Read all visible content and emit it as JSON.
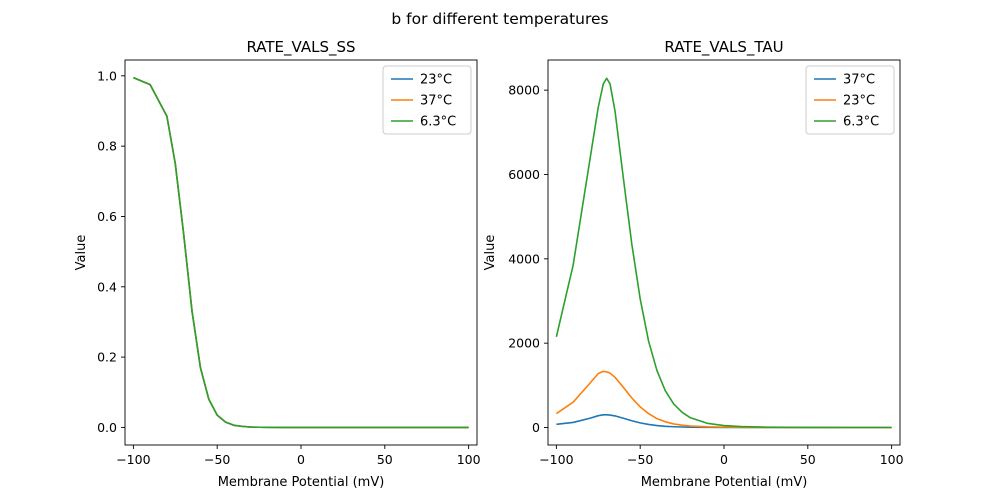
{
  "figure": {
    "suptitle": "b for different temperatures"
  },
  "chart_data": [
    {
      "type": "line",
      "title": "RATE_VALS_SS",
      "xlabel": "Membrane Potential (mV)",
      "ylabel": "Value",
      "xlim": [
        -105,
        105
      ],
      "ylim": [
        -0.05,
        1.045
      ],
      "xticks": [
        -100,
        -50,
        0,
        50,
        100
      ],
      "yticks": [
        0.0,
        0.2,
        0.4,
        0.6,
        0.8,
        1.0
      ],
      "ytick_labels": [
        "0.0",
        "0.2",
        "0.4",
        "0.6",
        "0.8",
        "1.0"
      ],
      "grid": false,
      "legend": "top-right",
      "x": [
        -100,
        -90,
        -80,
        -75,
        -70,
        -65,
        -60,
        -55,
        -50,
        -45,
        -40,
        -35,
        -30,
        -25,
        -20,
        -10,
        0,
        25,
        50,
        75,
        100
      ],
      "series": [
        {
          "name": "23°C",
          "color": "#1f77b4",
          "values": [
            0.995,
            0.975,
            0.885,
            0.75,
            0.55,
            0.33,
            0.17,
            0.08,
            0.035,
            0.015,
            0.006,
            0.003,
            0.001,
            0.0005,
            0.0002,
            0,
            0,
            0,
            0,
            0,
            0
          ]
        },
        {
          "name": "37°C",
          "color": "#ff7f0e",
          "values": [
            0.995,
            0.975,
            0.885,
            0.75,
            0.55,
            0.33,
            0.17,
            0.08,
            0.035,
            0.015,
            0.006,
            0.003,
            0.001,
            0.0005,
            0.0002,
            0,
            0,
            0,
            0,
            0,
            0
          ]
        },
        {
          "name": "6.3°C",
          "color": "#2ca02c",
          "values": [
            0.995,
            0.975,
            0.885,
            0.75,
            0.55,
            0.33,
            0.17,
            0.08,
            0.035,
            0.015,
            0.006,
            0.003,
            0.001,
            0.0005,
            0.0002,
            0,
            0,
            0,
            0,
            0,
            0
          ]
        }
      ]
    },
    {
      "type": "line",
      "title": "RATE_VALS_TAU",
      "xlabel": "Membrane Potential (mV)",
      "ylabel": "Value",
      "xlim": [
        -105,
        105
      ],
      "ylim": [
        -415,
        8715
      ],
      "xticks": [
        -100,
        -50,
        0,
        50,
        100
      ],
      "yticks": [
        0,
        2000,
        4000,
        6000,
        8000
      ],
      "ytick_labels": [
        "0",
        "2000",
        "4000",
        "6000",
        "8000"
      ],
      "grid": false,
      "legend": "top-right",
      "x": [
        -100,
        -90,
        -80,
        -75,
        -72,
        -70,
        -68,
        -65,
        -60,
        -55,
        -50,
        -45,
        -40,
        -35,
        -30,
        -25,
        -20,
        -10,
        0,
        10,
        25,
        50,
        75,
        100
      ],
      "series": [
        {
          "name": "37°C",
          "color": "#1f77b4",
          "values": [
            75,
            120,
            220,
            280,
            300,
            300,
            295,
            275,
            220,
            160,
            110,
            72,
            45,
            28,
            18,
            12,
            8,
            4,
            2,
            1,
            0,
            0,
            0,
            0
          ]
        },
        {
          "name": "23°C",
          "color": "#ff7f0e",
          "values": [
            330,
            600,
            1050,
            1280,
            1330,
            1320,
            1290,
            1190,
            950,
            700,
            490,
            330,
            210,
            135,
            85,
            55,
            35,
            17,
            9,
            5,
            2,
            0,
            0,
            0
          ]
        },
        {
          "name": "6.3°C",
          "color": "#2ca02c",
          "values": [
            2150,
            3850,
            6350,
            7600,
            8150,
            8280,
            8150,
            7500,
            5900,
            4350,
            3050,
            2050,
            1350,
            870,
            560,
            360,
            230,
            100,
            45,
            22,
            8,
            2,
            0,
            0
          ]
        }
      ]
    }
  ]
}
